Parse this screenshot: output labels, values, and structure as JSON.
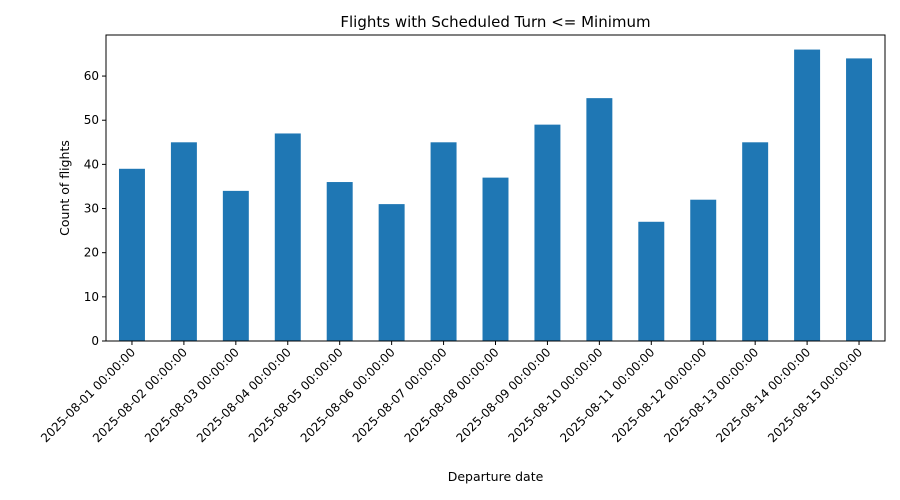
{
  "chart_data": {
    "type": "bar",
    "title": "Flights with Scheduled Turn <= Minimum",
    "xlabel": "Departure date",
    "ylabel": "Count of flights",
    "categories": [
      "2025-08-01 00:00:00",
      "2025-08-02 00:00:00",
      "2025-08-03 00:00:00",
      "2025-08-04 00:00:00",
      "2025-08-05 00:00:00",
      "2025-08-06 00:00:00",
      "2025-08-07 00:00:00",
      "2025-08-08 00:00:00",
      "2025-08-09 00:00:00",
      "2025-08-10 00:00:00",
      "2025-08-11 00:00:00",
      "2025-08-12 00:00:00",
      "2025-08-13 00:00:00",
      "2025-08-14 00:00:00",
      "2025-08-15 00:00:00"
    ],
    "values": [
      39,
      45,
      34,
      47,
      36,
      31,
      45,
      37,
      49,
      55,
      27,
      32,
      45,
      66,
      64
    ],
    "ylim": [
      0,
      69.3
    ],
    "yticks": [
      0,
      10,
      20,
      30,
      40,
      50,
      60
    ],
    "grid": false,
    "legend": "none",
    "bar_color": "#1f77b4"
  }
}
